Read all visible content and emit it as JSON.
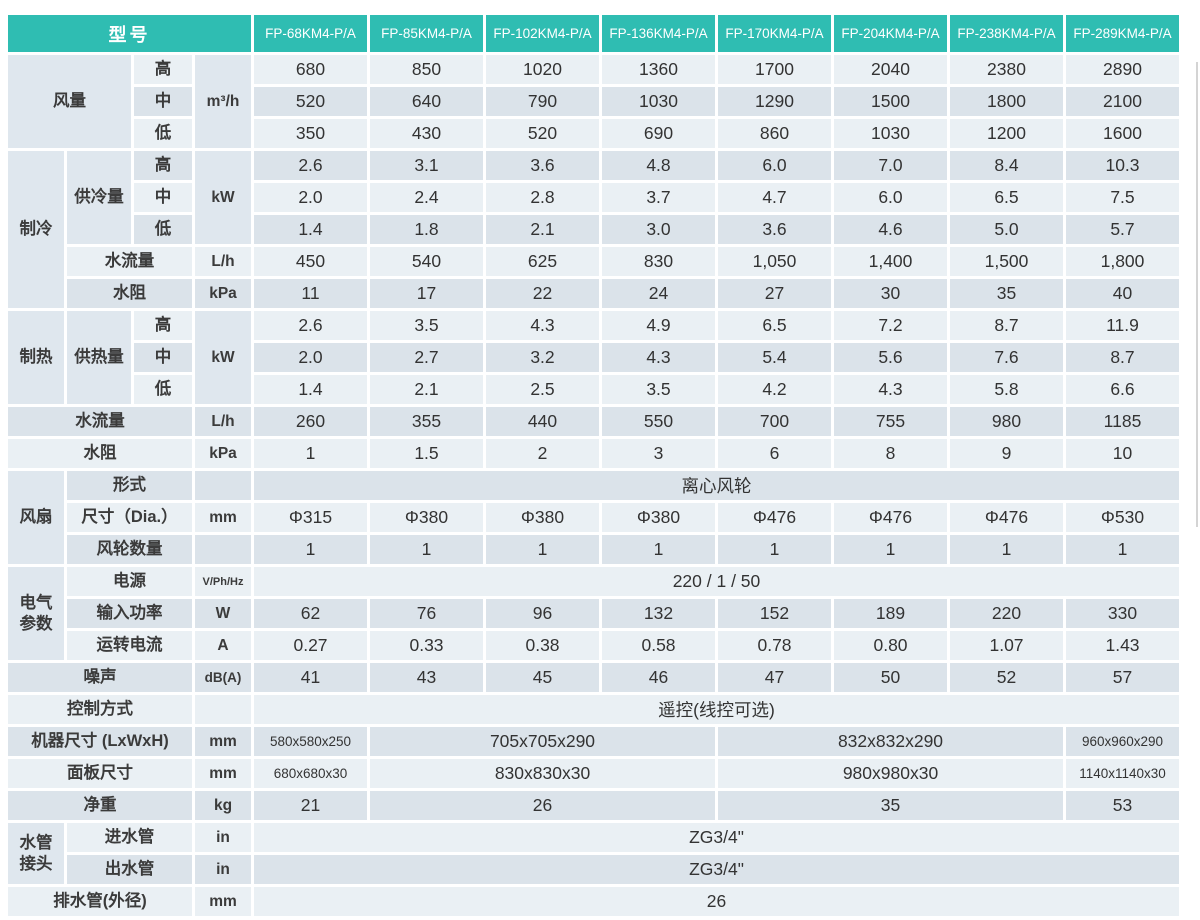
{
  "colors": {
    "header_teal": "#2FBDB2",
    "row_light": "#EAF0F4",
    "row_dark": "#DBE3EA",
    "cell_mid": "#DFE7EE",
    "text": "#333333"
  },
  "header": {
    "model_label": "型号",
    "models": [
      "FP-68KM4-P/A",
      "FP-85KM4-P/A",
      "FP-102KM4-P/A",
      "FP-136KM4-P/A",
      "FP-170KM4-P/A",
      "FP-204KM4-P/A",
      "FP-238KM4-P/A",
      "FP-289KM4-P/A"
    ]
  },
  "table": {
    "rows": [
      {
        "shade": "L",
        "cells": [
          {
            "t": "风量",
            "k": "grp",
            "c": 2,
            "r": 3
          },
          {
            "t": "高",
            "k": "lbl"
          },
          {
            "t": "m³/h",
            "k": "unitg",
            "r": 3
          },
          {
            "t": "680"
          },
          {
            "t": "850"
          },
          {
            "t": "1020"
          },
          {
            "t": "1360"
          },
          {
            "t": "1700"
          },
          {
            "t": "2040"
          },
          {
            "t": "2380"
          },
          {
            "t": "2890"
          }
        ]
      },
      {
        "shade": "D",
        "cells": [
          {
            "t": "中",
            "k": "lbl"
          },
          {
            "t": "520"
          },
          {
            "t": "640"
          },
          {
            "t": "790"
          },
          {
            "t": "1030"
          },
          {
            "t": "1290"
          },
          {
            "t": "1500"
          },
          {
            "t": "1800"
          },
          {
            "t": "2100"
          }
        ]
      },
      {
        "shade": "L",
        "cells": [
          {
            "t": "低",
            "k": "lbl"
          },
          {
            "t": "350"
          },
          {
            "t": "430"
          },
          {
            "t": "520"
          },
          {
            "t": "690"
          },
          {
            "t": "860"
          },
          {
            "t": "1030"
          },
          {
            "t": "1200"
          },
          {
            "t": "1600"
          }
        ]
      },
      {
        "shade": "D",
        "cells": [
          {
            "t": "制冷",
            "k": "grp",
            "r": 5
          },
          {
            "t": "供冷量",
            "k": "grp",
            "r": 3
          },
          {
            "t": "高",
            "k": "lbl"
          },
          {
            "t": "kW",
            "k": "unitg",
            "r": 3
          },
          {
            "t": "2.6"
          },
          {
            "t": "3.1"
          },
          {
            "t": "3.6"
          },
          {
            "t": "4.8"
          },
          {
            "t": "6.0"
          },
          {
            "t": "7.0"
          },
          {
            "t": "8.4"
          },
          {
            "t": "10.3"
          }
        ]
      },
      {
        "shade": "L",
        "cells": [
          {
            "t": "中",
            "k": "lbl"
          },
          {
            "t": "2.0"
          },
          {
            "t": "2.4"
          },
          {
            "t": "2.8"
          },
          {
            "t": "3.7"
          },
          {
            "t": "4.7"
          },
          {
            "t": "6.0"
          },
          {
            "t": "6.5"
          },
          {
            "t": "7.5"
          }
        ]
      },
      {
        "shade": "D",
        "cells": [
          {
            "t": "低",
            "k": "lbl"
          },
          {
            "t": "1.4"
          },
          {
            "t": "1.8"
          },
          {
            "t": "2.1"
          },
          {
            "t": "3.0"
          },
          {
            "t": "3.6"
          },
          {
            "t": "4.6"
          },
          {
            "t": "5.0"
          },
          {
            "t": "5.7"
          }
        ]
      },
      {
        "shade": "L",
        "cells": [
          {
            "t": "水流量",
            "k": "lbl",
            "c": 2
          },
          {
            "t": "L/h",
            "k": "unit"
          },
          {
            "t": "450"
          },
          {
            "t": "540"
          },
          {
            "t": "625"
          },
          {
            "t": "830"
          },
          {
            "t": "1,050"
          },
          {
            "t": "1,400"
          },
          {
            "t": "1,500"
          },
          {
            "t": "1,800"
          }
        ]
      },
      {
        "shade": "D",
        "cells": [
          {
            "t": "水阻",
            "k": "lbl",
            "c": 2
          },
          {
            "t": "kPa",
            "k": "unit"
          },
          {
            "t": "11"
          },
          {
            "t": "17"
          },
          {
            "t": "22"
          },
          {
            "t": "24"
          },
          {
            "t": "27"
          },
          {
            "t": "30"
          },
          {
            "t": "35"
          },
          {
            "t": "40"
          }
        ]
      },
      {
        "shade": "L",
        "cells": [
          {
            "t": "制热",
            "k": "grp",
            "r": 3
          },
          {
            "t": "供热量",
            "k": "grp",
            "r": 3
          },
          {
            "t": "高",
            "k": "lbl"
          },
          {
            "t": "kW",
            "k": "unitg",
            "r": 3
          },
          {
            "t": "2.6"
          },
          {
            "t": "3.5"
          },
          {
            "t": "4.3"
          },
          {
            "t": "4.9"
          },
          {
            "t": "6.5"
          },
          {
            "t": "7.2"
          },
          {
            "t": "8.7"
          },
          {
            "t": "11.9"
          }
        ]
      },
      {
        "shade": "D",
        "cells": [
          {
            "t": "中",
            "k": "lbl"
          },
          {
            "t": "2.0"
          },
          {
            "t": "2.7"
          },
          {
            "t": "3.2"
          },
          {
            "t": "4.3"
          },
          {
            "t": "5.4"
          },
          {
            "t": "5.6"
          },
          {
            "t": "7.6"
          },
          {
            "t": "8.7"
          }
        ]
      },
      {
        "shade": "L",
        "cells": [
          {
            "t": "低",
            "k": "lbl"
          },
          {
            "t": "1.4"
          },
          {
            "t": "2.1"
          },
          {
            "t": "2.5"
          },
          {
            "t": "3.5"
          },
          {
            "t": "4.2"
          },
          {
            "t": "4.3"
          },
          {
            "t": "5.8"
          },
          {
            "t": "6.6"
          }
        ]
      },
      {
        "shade": "D",
        "cells": [
          {
            "t": "水流量",
            "k": "lbl",
            "c": 3
          },
          {
            "t": "L/h",
            "k": "unit"
          },
          {
            "t": "260"
          },
          {
            "t": "355"
          },
          {
            "t": "440"
          },
          {
            "t": "550"
          },
          {
            "t": "700"
          },
          {
            "t": "755"
          },
          {
            "t": "980"
          },
          {
            "t": "1185"
          }
        ]
      },
      {
        "shade": "L",
        "cells": [
          {
            "t": "水阻",
            "k": "lbl",
            "c": 3
          },
          {
            "t": "kPa",
            "k": "unit"
          },
          {
            "t": "1"
          },
          {
            "t": "1.5"
          },
          {
            "t": "2"
          },
          {
            "t": "3"
          },
          {
            "t": "6"
          },
          {
            "t": "8"
          },
          {
            "t": "9"
          },
          {
            "t": "10"
          }
        ]
      },
      {
        "shade": "D",
        "cells": [
          {
            "t": "风扇",
            "k": "grp",
            "r": 3
          },
          {
            "t": "形式",
            "k": "lbl",
            "c": 2
          },
          {
            "t": "",
            "k": "unit"
          },
          {
            "t": "离心风轮",
            "c": 8
          }
        ]
      },
      {
        "shade": "L",
        "cells": [
          {
            "t": "尺寸（Dia.）",
            "k": "lbl",
            "c": 2
          },
          {
            "t": "mm",
            "k": "unit"
          },
          {
            "t": "Φ315"
          },
          {
            "t": "Φ380"
          },
          {
            "t": "Φ380"
          },
          {
            "t": "Φ380"
          },
          {
            "t": "Φ476"
          },
          {
            "t": "Φ476"
          },
          {
            "t": "Φ476"
          },
          {
            "t": "Φ530"
          }
        ]
      },
      {
        "shade": "D",
        "cells": [
          {
            "t": "风轮数量",
            "k": "lbl",
            "c": 2
          },
          {
            "t": "",
            "k": "unit"
          },
          {
            "t": "1"
          },
          {
            "t": "1"
          },
          {
            "t": "1"
          },
          {
            "t": "1"
          },
          {
            "t": "1"
          },
          {
            "t": "1"
          },
          {
            "t": "1"
          },
          {
            "t": "1"
          }
        ]
      },
      {
        "shade": "L",
        "cells": [
          {
            "t": "电气\n参数",
            "k": "grp",
            "r": 3
          },
          {
            "t": "电源",
            "k": "lbl",
            "c": 2
          },
          {
            "t": "V/Ph/Hz",
            "k": "unit-sm"
          },
          {
            "t": "220 / 1 / 50",
            "c": 8
          }
        ]
      },
      {
        "shade": "D",
        "cells": [
          {
            "t": "输入功率",
            "k": "lbl",
            "c": 2
          },
          {
            "t": "W",
            "k": "unit"
          },
          {
            "t": "62"
          },
          {
            "t": "76"
          },
          {
            "t": "96"
          },
          {
            "t": "132"
          },
          {
            "t": "152"
          },
          {
            "t": "189"
          },
          {
            "t": "220"
          },
          {
            "t": "330"
          }
        ]
      },
      {
        "shade": "L",
        "cells": [
          {
            "t": "运转电流",
            "k": "lbl",
            "c": 2
          },
          {
            "t": "A",
            "k": "unit"
          },
          {
            "t": "0.27"
          },
          {
            "t": "0.33"
          },
          {
            "t": "0.38"
          },
          {
            "t": "0.58"
          },
          {
            "t": "0.78"
          },
          {
            "t": "0.80"
          },
          {
            "t": "1.07"
          },
          {
            "t": "1.43"
          }
        ]
      },
      {
        "shade": "D",
        "cells": [
          {
            "t": "噪声",
            "k": "lbl",
            "c": 3
          },
          {
            "t": "dB(A)",
            "k": "unit-md"
          },
          {
            "t": "41"
          },
          {
            "t": "43"
          },
          {
            "t": "45"
          },
          {
            "t": "46"
          },
          {
            "t": "47"
          },
          {
            "t": "50"
          },
          {
            "t": "52"
          },
          {
            "t": "57"
          }
        ]
      },
      {
        "shade": "L",
        "cells": [
          {
            "t": "控制方式",
            "k": "lbl",
            "c": 3
          },
          {
            "t": "",
            "k": "unit"
          },
          {
            "t": "遥控(线控可选)",
            "c": 8
          }
        ]
      },
      {
        "shade": "D",
        "cells": [
          {
            "t": "机器尺寸 (LxWxH)",
            "k": "lbl",
            "c": 3
          },
          {
            "t": "mm",
            "k": "unit"
          },
          {
            "t": "580x580x250",
            "k": "val-sm"
          },
          {
            "t": "705x705x290",
            "c": 3
          },
          {
            "t": "832x832x290",
            "c": 3
          },
          {
            "t": "960x960x290",
            "k": "val-sm"
          }
        ]
      },
      {
        "shade": "L",
        "cells": [
          {
            "t": "面板尺寸",
            "k": "lbl",
            "c": 3
          },
          {
            "t": "mm",
            "k": "unit"
          },
          {
            "t": "680x680x30",
            "k": "val-sm"
          },
          {
            "t": "830x830x30",
            "c": 3
          },
          {
            "t": "980x980x30",
            "c": 3
          },
          {
            "t": "1140x1140x30",
            "k": "val-sm"
          }
        ]
      },
      {
        "shade": "D",
        "cells": [
          {
            "t": "净重",
            "k": "lbl",
            "c": 3
          },
          {
            "t": "kg",
            "k": "unit"
          },
          {
            "t": "21"
          },
          {
            "t": "26",
            "c": 3
          },
          {
            "t": "35",
            "c": 3
          },
          {
            "t": "53"
          }
        ]
      },
      {
        "shade": "L",
        "cells": [
          {
            "t": "水管\n接头",
            "k": "grp",
            "r": 2
          },
          {
            "t": "进水管",
            "k": "lbl",
            "c": 2
          },
          {
            "t": "in",
            "k": "unit"
          },
          {
            "t": "ZG3/4\"",
            "c": 8
          }
        ]
      },
      {
        "shade": "D",
        "cells": [
          {
            "t": "出水管",
            "k": "lbl",
            "c": 2
          },
          {
            "t": "in",
            "k": "unit"
          },
          {
            "t": "ZG3/4\"",
            "c": 8
          }
        ]
      },
      {
        "shade": "L",
        "cells": [
          {
            "t": "排水管(外径)",
            "k": "lbl",
            "c": 3
          },
          {
            "t": "mm",
            "k": "unit"
          },
          {
            "t": "26",
            "c": 8
          }
        ]
      }
    ]
  }
}
